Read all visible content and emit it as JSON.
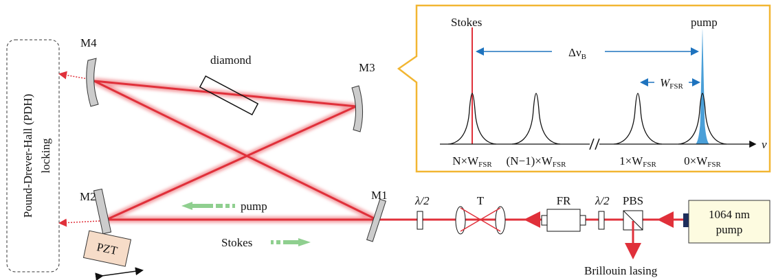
{
  "locking_box": {
    "line1": "Pound-Drever-Hall (PDH)",
    "line2": "locking"
  },
  "mirrors": {
    "m1": "M1",
    "m2": "M2",
    "m3": "M3",
    "m4": "M4"
  },
  "crystal": "diamond",
  "actuator": "PZT",
  "cavity_arrows": {
    "pump": "pump",
    "stokes": "Stokes"
  },
  "components": {
    "half_wave_1": "λ/2",
    "telescope": "T",
    "faraday_rotator": "FR",
    "half_wave_2": "λ/2",
    "pbs": "PBS"
  },
  "source": {
    "line1": "1064 nm",
    "line2": "pump"
  },
  "output": "Brillouin lasing",
  "inset": {
    "stokes": "Stokes",
    "pump": "pump",
    "shift": {
      "main": "Δν",
      "sub": "B"
    },
    "fsr": {
      "main": "W",
      "sub": "FSR"
    },
    "axis": "ν",
    "peak_labels": [
      {
        "main": "N×W",
        "sub": "FSR"
      },
      {
        "main": "(N−1)×W",
        "sub": "FSR"
      },
      {
        "main": "1×W",
        "sub": "FSR"
      },
      {
        "main": "0×W",
        "sub": "FSR"
      }
    ]
  }
}
